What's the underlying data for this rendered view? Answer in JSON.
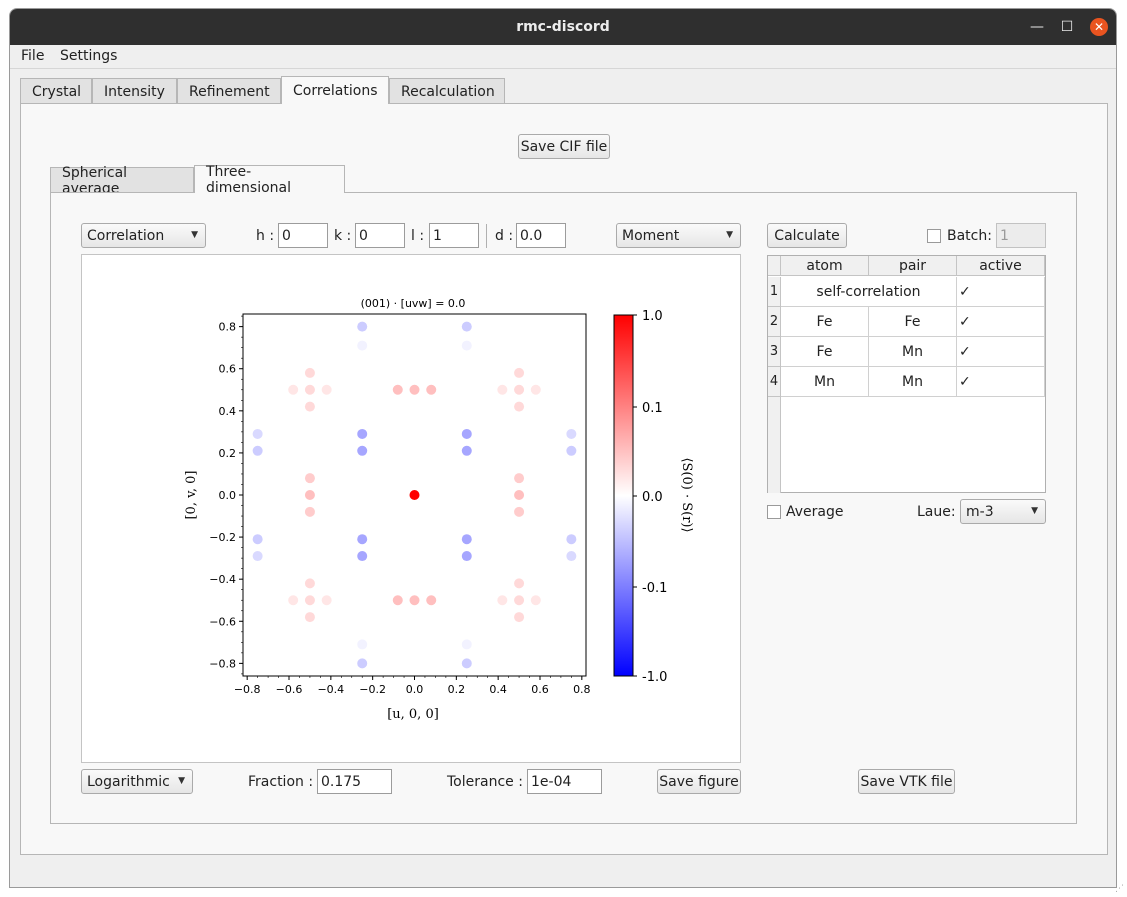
{
  "window": {
    "title": "rmc-discord"
  },
  "menu": {
    "file": "File",
    "settings": "Settings"
  },
  "main_tabs": [
    "Crystal",
    "Intensity",
    "Refinement",
    "Correlations",
    "Recalculation"
  ],
  "save_cif_label": "Save CIF file",
  "sub_tabs": [
    "Spherical average",
    "Three-dimensional"
  ],
  "controls": {
    "correlation_combo": "Correlation",
    "h_label": "h :",
    "h_value": "0",
    "k_label": "k :",
    "k_value": "0",
    "l_label": "l :",
    "l_value": "1",
    "d_label": "d :",
    "d_value": "0.0",
    "moment_combo": "Moment",
    "calculate_label": "Calculate",
    "batch_label": "Batch:",
    "batch_value": "1"
  },
  "table": {
    "headers": [
      "atom",
      "pair",
      "active"
    ],
    "rows": [
      {
        "num": "1",
        "atom": "self-correlation",
        "pair": "",
        "active": "✓"
      },
      {
        "num": "2",
        "atom": "Fe",
        "pair": "Fe",
        "active": "✓"
      },
      {
        "num": "3",
        "atom": "Fe",
        "pair": "Mn",
        "active": "✓"
      },
      {
        "num": "4",
        "atom": "Mn",
        "pair": "Mn",
        "active": "✓"
      }
    ]
  },
  "average_label": "Average",
  "laue_label": "Laue:",
  "laue_value": "m-3",
  "bottom": {
    "scale_combo": "Logarithmic",
    "fraction_label": "Fraction :",
    "fraction_value": "0.175",
    "tolerance_label": "Tolerance :",
    "tolerance_value": "1e-04",
    "save_figure_label": "Save figure",
    "save_vtk_label": "Save VTK file"
  },
  "chart_data": {
    "type": "scatter",
    "title": "(001) · [uvw] = 0.0",
    "xlabel": "[u, 0, 0]",
    "ylabel": "[0, v, 0]",
    "colorbar_label": "⟨S(0) · S(r)⟩",
    "xlim": [
      -0.82,
      0.82
    ],
    "ylim": [
      -0.86,
      0.86
    ],
    "x_ticks": [
      "−0.8",
      "−0.6",
      "−0.4",
      "−0.2",
      "0.0",
      "0.2",
      "0.4",
      "0.6",
      "0.8"
    ],
    "y_ticks": [
      "0.8",
      "0.6",
      "0.4",
      "0.2",
      "0.0",
      "−0.2",
      "−0.4",
      "−0.6",
      "−0.8"
    ],
    "colorbar_ticks": [
      "1.0",
      "0.1",
      "0.0",
      "-0.1",
      "-1.0"
    ],
    "colormap": [
      "#0000ff",
      "#ffffff",
      "#ff0000"
    ],
    "points": [
      {
        "x": 0.0,
        "y": 0.0,
        "v": 1.0
      },
      {
        "x": -0.25,
        "y": 0.8,
        "v": -0.04
      },
      {
        "x": 0.25,
        "y": 0.8,
        "v": -0.04
      },
      {
        "x": -0.25,
        "y": 0.71,
        "v": -0.01
      },
      {
        "x": 0.25,
        "y": 0.71,
        "v": -0.01
      },
      {
        "x": -0.25,
        "y": -0.8,
        "v": -0.04
      },
      {
        "x": 0.25,
        "y": -0.8,
        "v": -0.04
      },
      {
        "x": -0.25,
        "y": -0.71,
        "v": -0.01
      },
      {
        "x": 0.25,
        "y": -0.71,
        "v": -0.01
      },
      {
        "x": -0.25,
        "y": 0.29,
        "v": -0.07
      },
      {
        "x": 0.25,
        "y": 0.29,
        "v": -0.07
      },
      {
        "x": -0.25,
        "y": 0.21,
        "v": -0.07
      },
      {
        "x": 0.25,
        "y": 0.21,
        "v": -0.07
      },
      {
        "x": -0.25,
        "y": -0.21,
        "v": -0.07
      },
      {
        "x": 0.25,
        "y": -0.21,
        "v": -0.07
      },
      {
        "x": -0.25,
        "y": -0.29,
        "v": -0.07
      },
      {
        "x": 0.25,
        "y": -0.29,
        "v": -0.07
      },
      {
        "x": -0.75,
        "y": 0.29,
        "v": -0.03
      },
      {
        "x": 0.75,
        "y": 0.29,
        "v": -0.03
      },
      {
        "x": -0.75,
        "y": 0.21,
        "v": -0.04
      },
      {
        "x": 0.75,
        "y": 0.21,
        "v": -0.04
      },
      {
        "x": -0.75,
        "y": -0.21,
        "v": -0.04
      },
      {
        "x": 0.75,
        "y": -0.21,
        "v": -0.04
      },
      {
        "x": -0.75,
        "y": -0.29,
        "v": -0.03
      },
      {
        "x": 0.75,
        "y": -0.29,
        "v": -0.03
      },
      {
        "x": -0.5,
        "y": 0.08,
        "v": 0.04
      },
      {
        "x": -0.5,
        "y": 0.0,
        "v": 0.05
      },
      {
        "x": -0.5,
        "y": -0.08,
        "v": 0.04
      },
      {
        "x": 0.5,
        "y": 0.08,
        "v": 0.04
      },
      {
        "x": 0.5,
        "y": 0.0,
        "v": 0.05
      },
      {
        "x": 0.5,
        "y": -0.08,
        "v": 0.04
      },
      {
        "x": -0.08,
        "y": 0.5,
        "v": 0.05
      },
      {
        "x": 0.0,
        "y": 0.5,
        "v": 0.05
      },
      {
        "x": 0.08,
        "y": 0.5,
        "v": 0.05
      },
      {
        "x": -0.08,
        "y": -0.5,
        "v": 0.05
      },
      {
        "x": 0.0,
        "y": -0.5,
        "v": 0.05
      },
      {
        "x": 0.08,
        "y": -0.5,
        "v": 0.05
      },
      {
        "x": -0.5,
        "y": 0.58,
        "v": 0.03
      },
      {
        "x": -0.5,
        "y": 0.5,
        "v": 0.03
      },
      {
        "x": -0.5,
        "y": 0.42,
        "v": 0.03
      },
      {
        "x": -0.58,
        "y": 0.5,
        "v": 0.02
      },
      {
        "x": -0.42,
        "y": 0.5,
        "v": 0.02
      },
      {
        "x": 0.5,
        "y": 0.58,
        "v": 0.03
      },
      {
        "x": 0.5,
        "y": 0.5,
        "v": 0.03
      },
      {
        "x": 0.5,
        "y": 0.42,
        "v": 0.03
      },
      {
        "x": 0.42,
        "y": 0.5,
        "v": 0.02
      },
      {
        "x": 0.58,
        "y": 0.5,
        "v": 0.02
      },
      {
        "x": -0.5,
        "y": -0.42,
        "v": 0.03
      },
      {
        "x": -0.5,
        "y": -0.5,
        "v": 0.03
      },
      {
        "x": -0.5,
        "y": -0.58,
        "v": 0.03
      },
      {
        "x": -0.58,
        "y": -0.5,
        "v": 0.02
      },
      {
        "x": -0.42,
        "y": -0.5,
        "v": 0.02
      },
      {
        "x": 0.5,
        "y": -0.42,
        "v": 0.03
      },
      {
        "x": 0.5,
        "y": -0.5,
        "v": 0.03
      },
      {
        "x": 0.5,
        "y": -0.58,
        "v": 0.03
      },
      {
        "x": 0.42,
        "y": -0.5,
        "v": 0.02
      },
      {
        "x": 0.58,
        "y": -0.5,
        "v": 0.02
      }
    ]
  }
}
